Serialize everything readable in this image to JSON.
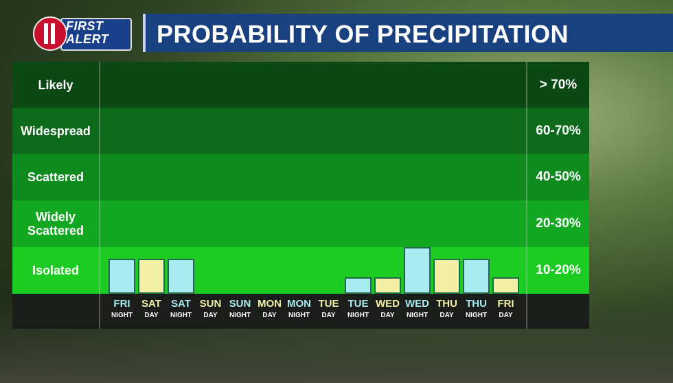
{
  "logo": {
    "line1": "FIRST",
    "line2": "ALERT"
  },
  "title": "PROBABILITY OF PRECIPITATION",
  "colors": {
    "night_bar": "#a8ecf2",
    "day_bar": "#f2f0a6",
    "night_text": "#a8ecf2",
    "day_text": "#f2f0a6",
    "row_colors": [
      "#0b4814",
      "#0d6a1a",
      "#0f8a1f",
      "#13a722",
      "#1dcc23"
    ]
  },
  "rows": [
    {
      "label": "Likely",
      "range": "> 70%"
    },
    {
      "label": "Widespread",
      "range": "60-70%"
    },
    {
      "label": "Scattered",
      "range": "40-50%"
    },
    {
      "label": "Widely\nScattered",
      "range": "20-30%"
    },
    {
      "label": "Isolated",
      "range": "10-20%"
    }
  ],
  "chart_data": {
    "type": "bar",
    "title": "PROBABILITY OF PRECIPITATION",
    "categories": [
      {
        "day": "FRI",
        "period": "NIGHT"
      },
      {
        "day": "SAT",
        "period": "DAY"
      },
      {
        "day": "SAT",
        "period": "NIGHT"
      },
      {
        "day": "SUN",
        "period": "DAY"
      },
      {
        "day": "SUN",
        "period": "NIGHT"
      },
      {
        "day": "MON",
        "period": "DAY"
      },
      {
        "day": "MON",
        "period": "NIGHT"
      },
      {
        "day": "TUE",
        "period": "DAY"
      },
      {
        "day": "TUE",
        "period": "NIGHT"
      },
      {
        "day": "WED",
        "period": "DAY"
      },
      {
        "day": "WED",
        "period": "NIGHT"
      },
      {
        "day": "THU",
        "period": "DAY"
      },
      {
        "day": "THU",
        "period": "NIGHT"
      },
      {
        "day": "FRI",
        "period": "DAY"
      }
    ],
    "values": [
      15,
      15,
      15,
      0,
      0,
      0,
      0,
      0,
      7,
      7,
      20,
      15,
      15,
      7
    ],
    "ylabels": [
      "Isolated",
      "Widely Scattered",
      "Scattered",
      "Widespread",
      "Likely"
    ],
    "ytick_ranges": [
      "10-20%",
      "20-30%",
      "40-50%",
      "60-70%",
      "> 70%"
    ],
    "ylim": [
      0,
      50
    ],
    "legend": "none"
  }
}
